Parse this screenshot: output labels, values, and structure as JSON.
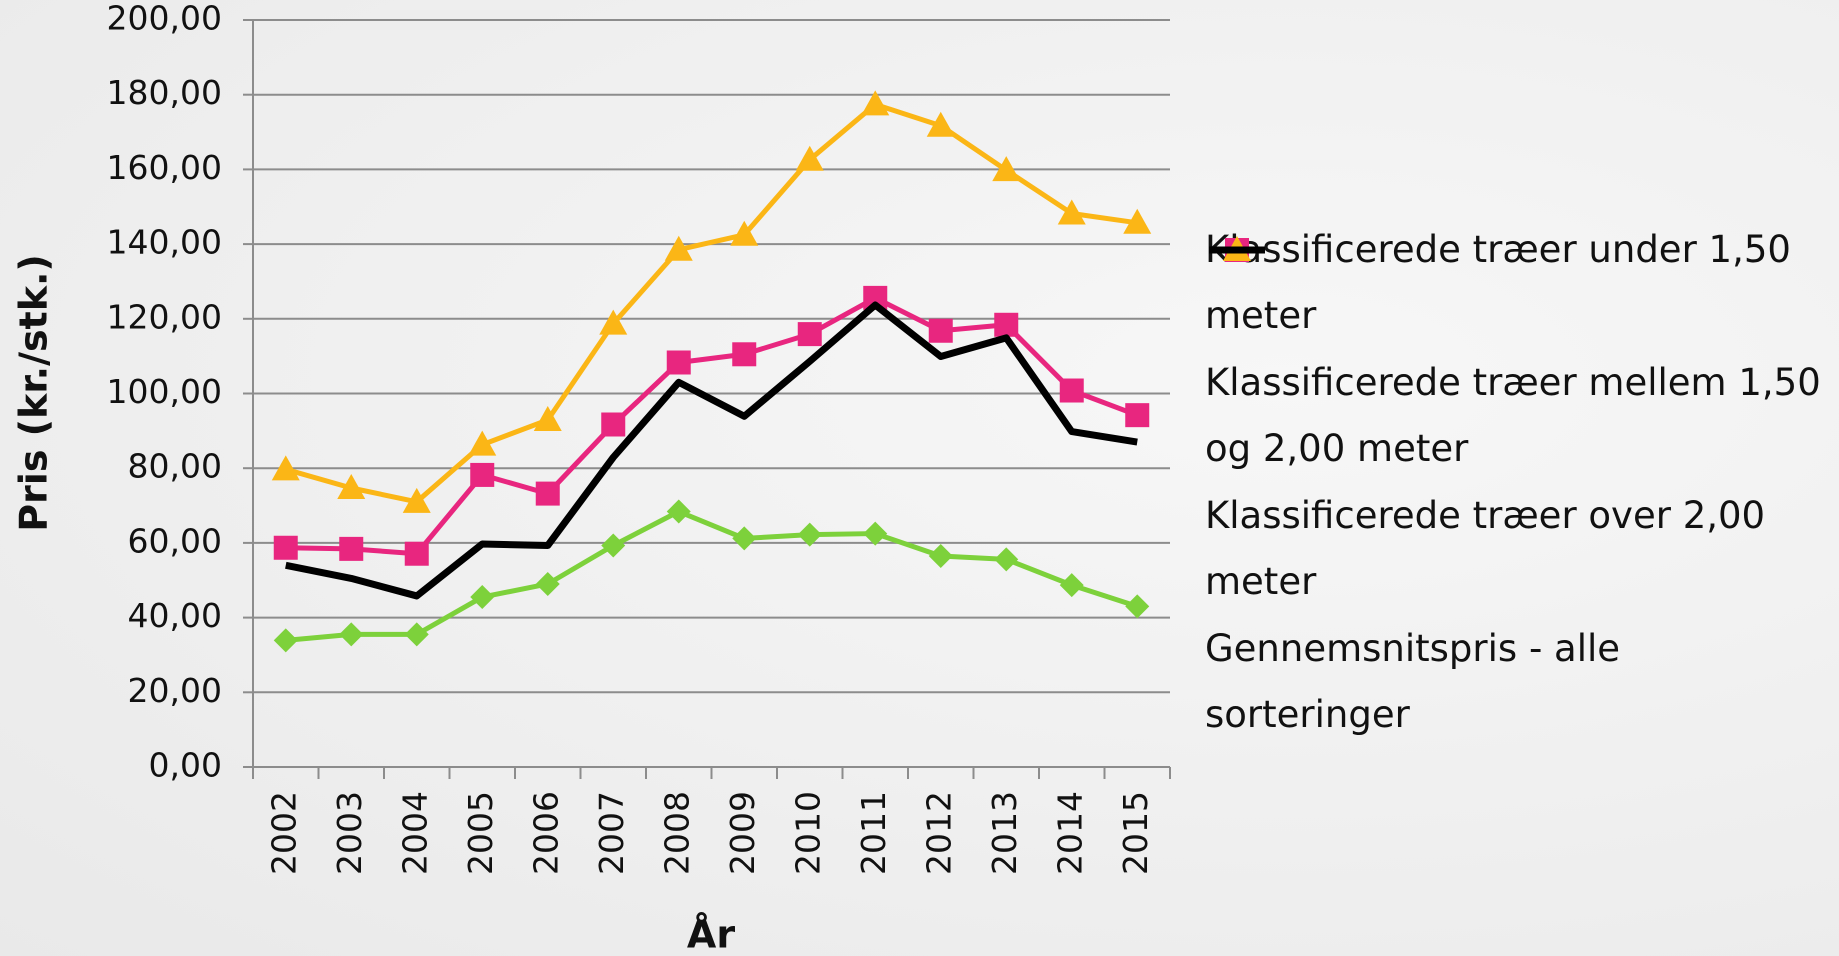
{
  "chart_data": {
    "type": "line",
    "y_label": "Pris (kr./stk.)",
    "x_label": "År",
    "categories": [
      "2002",
      "2003",
      "2004",
      "2005",
      "2006",
      "2007",
      "2008",
      "2009",
      "2010",
      "2011",
      "2012",
      "2013",
      "2014",
      "2015"
    ],
    "ylim": [
      0,
      200
    ],
    "yticks": [
      {
        "value": 0,
        "label": "0,00"
      },
      {
        "value": 20,
        "label": "20,00"
      },
      {
        "value": 40,
        "label": "40,00"
      },
      {
        "value": 60,
        "label": "60,00"
      },
      {
        "value": 80,
        "label": "80,00"
      },
      {
        "value": 100,
        "label": "100,00"
      },
      {
        "value": 120,
        "label": "120,00"
      },
      {
        "value": 140,
        "label": "140,00"
      },
      {
        "value": 160,
        "label": "160,00"
      },
      {
        "value": 180,
        "label": "180,00"
      },
      {
        "value": 200,
        "label": "200,00"
      }
    ],
    "grid": true,
    "series": [
      {
        "name": "Klassificerede træer under 1,50 meter",
        "color": "#7dd13b",
        "marker": "diamond",
        "values": [
          33.9,
          35.5,
          35.5,
          45.5,
          49,
          59.3,
          68.4,
          61.2,
          62.2,
          62.5,
          56.5,
          55.6,
          48.7,
          43
        ]
      },
      {
        "name": "Klassificerede træer mellem 1,50 og 2,00 meter",
        "color": "#e8267f",
        "marker": "square",
        "values": [
          58.7,
          58.4,
          57.1,
          78.2,
          73.2,
          91.7,
          108.3,
          110.5,
          115.9,
          125.6,
          116.8,
          118.4,
          100.8,
          94.2
        ]
      },
      {
        "name": "Klassificerede træer over 2,00 meter",
        "color": "#fbb616",
        "marker": "triangle",
        "values": [
          79.7,
          74.7,
          71,
          86.3,
          92.9,
          118.7,
          138.5,
          142.5,
          162.6,
          177.4,
          171.7,
          159.8,
          148.2,
          145.7
        ]
      },
      {
        "name": "Gennemsnitspris - alle sorteringer",
        "color": "#000000",
        "marker": "none",
        "values": [
          54,
          50.5,
          45.8,
          59.7,
          59.3,
          82.9,
          103,
          93.9,
          108.6,
          123.7,
          109.9,
          114.9,
          89.8,
          87
        ]
      }
    ],
    "legend": "right"
  }
}
